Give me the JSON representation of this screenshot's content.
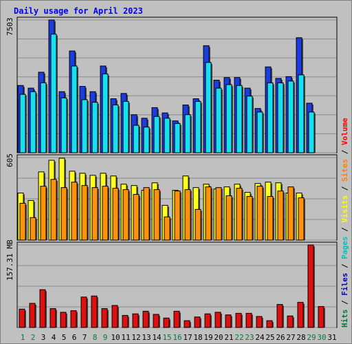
{
  "title": "Daily usage for April 2023",
  "colors": {
    "background": "#c0c0c0",
    "title": "#0000ff",
    "hits_outer": "#1a3ce0",
    "files": "#18e0f0",
    "visits": "#ffff20",
    "sites": "#ff9010",
    "volume": "#e01010",
    "axis_label": "#000000",
    "weekend_label": "#007a3a"
  },
  "legend": [
    {
      "label": "Hits",
      "color": "#007a3a"
    },
    {
      "label": "/",
      "color": "#000000"
    },
    {
      "label": "Files",
      "color": "#0000cc"
    },
    {
      "label": "/",
      "color": "#000000"
    },
    {
      "label": "Pages",
      "color": "#00c0c0"
    },
    {
      "label": "/",
      "color": "#000000"
    },
    {
      "label": "Visits",
      "color": "#ffff00"
    },
    {
      "label": "/",
      "color": "#000000"
    },
    {
      "label": "Sites",
      "color": "#ff8000"
    },
    {
      "label": "/",
      "color": "#000000"
    },
    {
      "label": "Volume",
      "color": "#ff0000"
    }
  ],
  "chart_data": [
    {
      "type": "bar",
      "panel": "hits-files-pages",
      "ymax_label": "7503",
      "ylim": [
        0,
        7503
      ],
      "categories": [
        "1",
        "2",
        "3",
        "4",
        "5",
        "6",
        "7",
        "8",
        "9",
        "10",
        "11",
        "12",
        "13",
        "14",
        "15",
        "16",
        "17",
        "18",
        "19",
        "20",
        "21",
        "22",
        "23",
        "24",
        "25",
        "26",
        "27",
        "28",
        "29",
        "30",
        "31"
      ],
      "weekend_days": [
        "1",
        "2",
        "8",
        "9",
        "15",
        "16",
        "22",
        "23",
        "29",
        "30"
      ],
      "series": [
        {
          "name": "Hits",
          "values": [
            3800,
            3650,
            4550,
            7503,
            3450,
            5750,
            3750,
            3450,
            4900,
            3050,
            3350,
            2150,
            1950,
            2550,
            2250,
            1800,
            2700,
            3050,
            6050,
            4100,
            4250,
            4250,
            3650,
            2500,
            4850,
            4200,
            4300,
            6500,
            2800,
            0,
            0
          ]
        },
        {
          "name": "Files",
          "values": [
            3300,
            3450,
            3950,
            6700,
            3100,
            4900,
            3000,
            2850,
            4450,
            2700,
            2900,
            1550,
            1450,
            2050,
            1950,
            1650,
            2150,
            2900,
            5100,
            3650,
            3850,
            3800,
            3200,
            2300,
            3950,
            3950,
            4050,
            4400,
            2300,
            0,
            0
          ]
        },
        {
          "name": "Pages",
          "values": [
            3300,
            3450,
            3950,
            6700,
            3100,
            4900,
            3000,
            2850,
            4450,
            2700,
            2900,
            1550,
            1450,
            2050,
            1950,
            1650,
            2150,
            2900,
            5100,
            3650,
            3850,
            3800,
            3200,
            2300,
            3950,
            3950,
            4050,
            4400,
            2300,
            0,
            0
          ]
        }
      ]
    },
    {
      "type": "bar",
      "panel": "visits-sites",
      "ymax_label": "605",
      "ylim": [
        0,
        605
      ],
      "categories": [
        "1",
        "2",
        "3",
        "4",
        "5",
        "6",
        "7",
        "8",
        "9",
        "10",
        "11",
        "12",
        "13",
        "14",
        "15",
        "16",
        "17",
        "18",
        "19",
        "20",
        "21",
        "22",
        "23",
        "24",
        "25",
        "26",
        "27",
        "28",
        "29",
        "30",
        "31"
      ],
      "series": [
        {
          "name": "Visits",
          "values": [
            345,
            290,
            500,
            585,
            600,
            505,
            490,
            475,
            490,
            470,
            410,
            400,
            365,
            420,
            255,
            365,
            470,
            385,
            410,
            375,
            390,
            410,
            350,
            415,
            425,
            420,
            345,
            345,
            0,
            0,
            0
          ]
        },
        {
          "name": "Sites",
          "values": [
            270,
            165,
            395,
            445,
            385,
            425,
            400,
            385,
            395,
            380,
            370,
            335,
            385,
            370,
            170,
            360,
            370,
            225,
            390,
            385,
            325,
            380,
            320,
            395,
            320,
            360,
            390,
            310,
            0,
            0,
            0
          ]
        }
      ]
    },
    {
      "type": "bar",
      "panel": "volume",
      "ymax_label": "157.31 MB",
      "ylim": [
        0,
        157.31
      ],
      "categories": [
        "1",
        "2",
        "3",
        "4",
        "5",
        "6",
        "7",
        "8",
        "9",
        "10",
        "11",
        "12",
        "13",
        "14",
        "15",
        "16",
        "17",
        "18",
        "19",
        "20",
        "21",
        "22",
        "23",
        "24",
        "25",
        "26",
        "27",
        "28",
        "29",
        "30",
        "31"
      ],
      "series": [
        {
          "name": "Volume (MB)",
          "values": [
            35,
            46,
            72,
            36,
            29,
            32,
            58,
            60,
            36,
            42,
            23,
            26,
            31,
            25,
            18,
            31,
            13,
            20,
            26,
            29,
            24,
            27,
            27,
            21,
            13,
            44,
            22,
            48,
            157.31,
            40,
            0
          ]
        }
      ]
    }
  ]
}
